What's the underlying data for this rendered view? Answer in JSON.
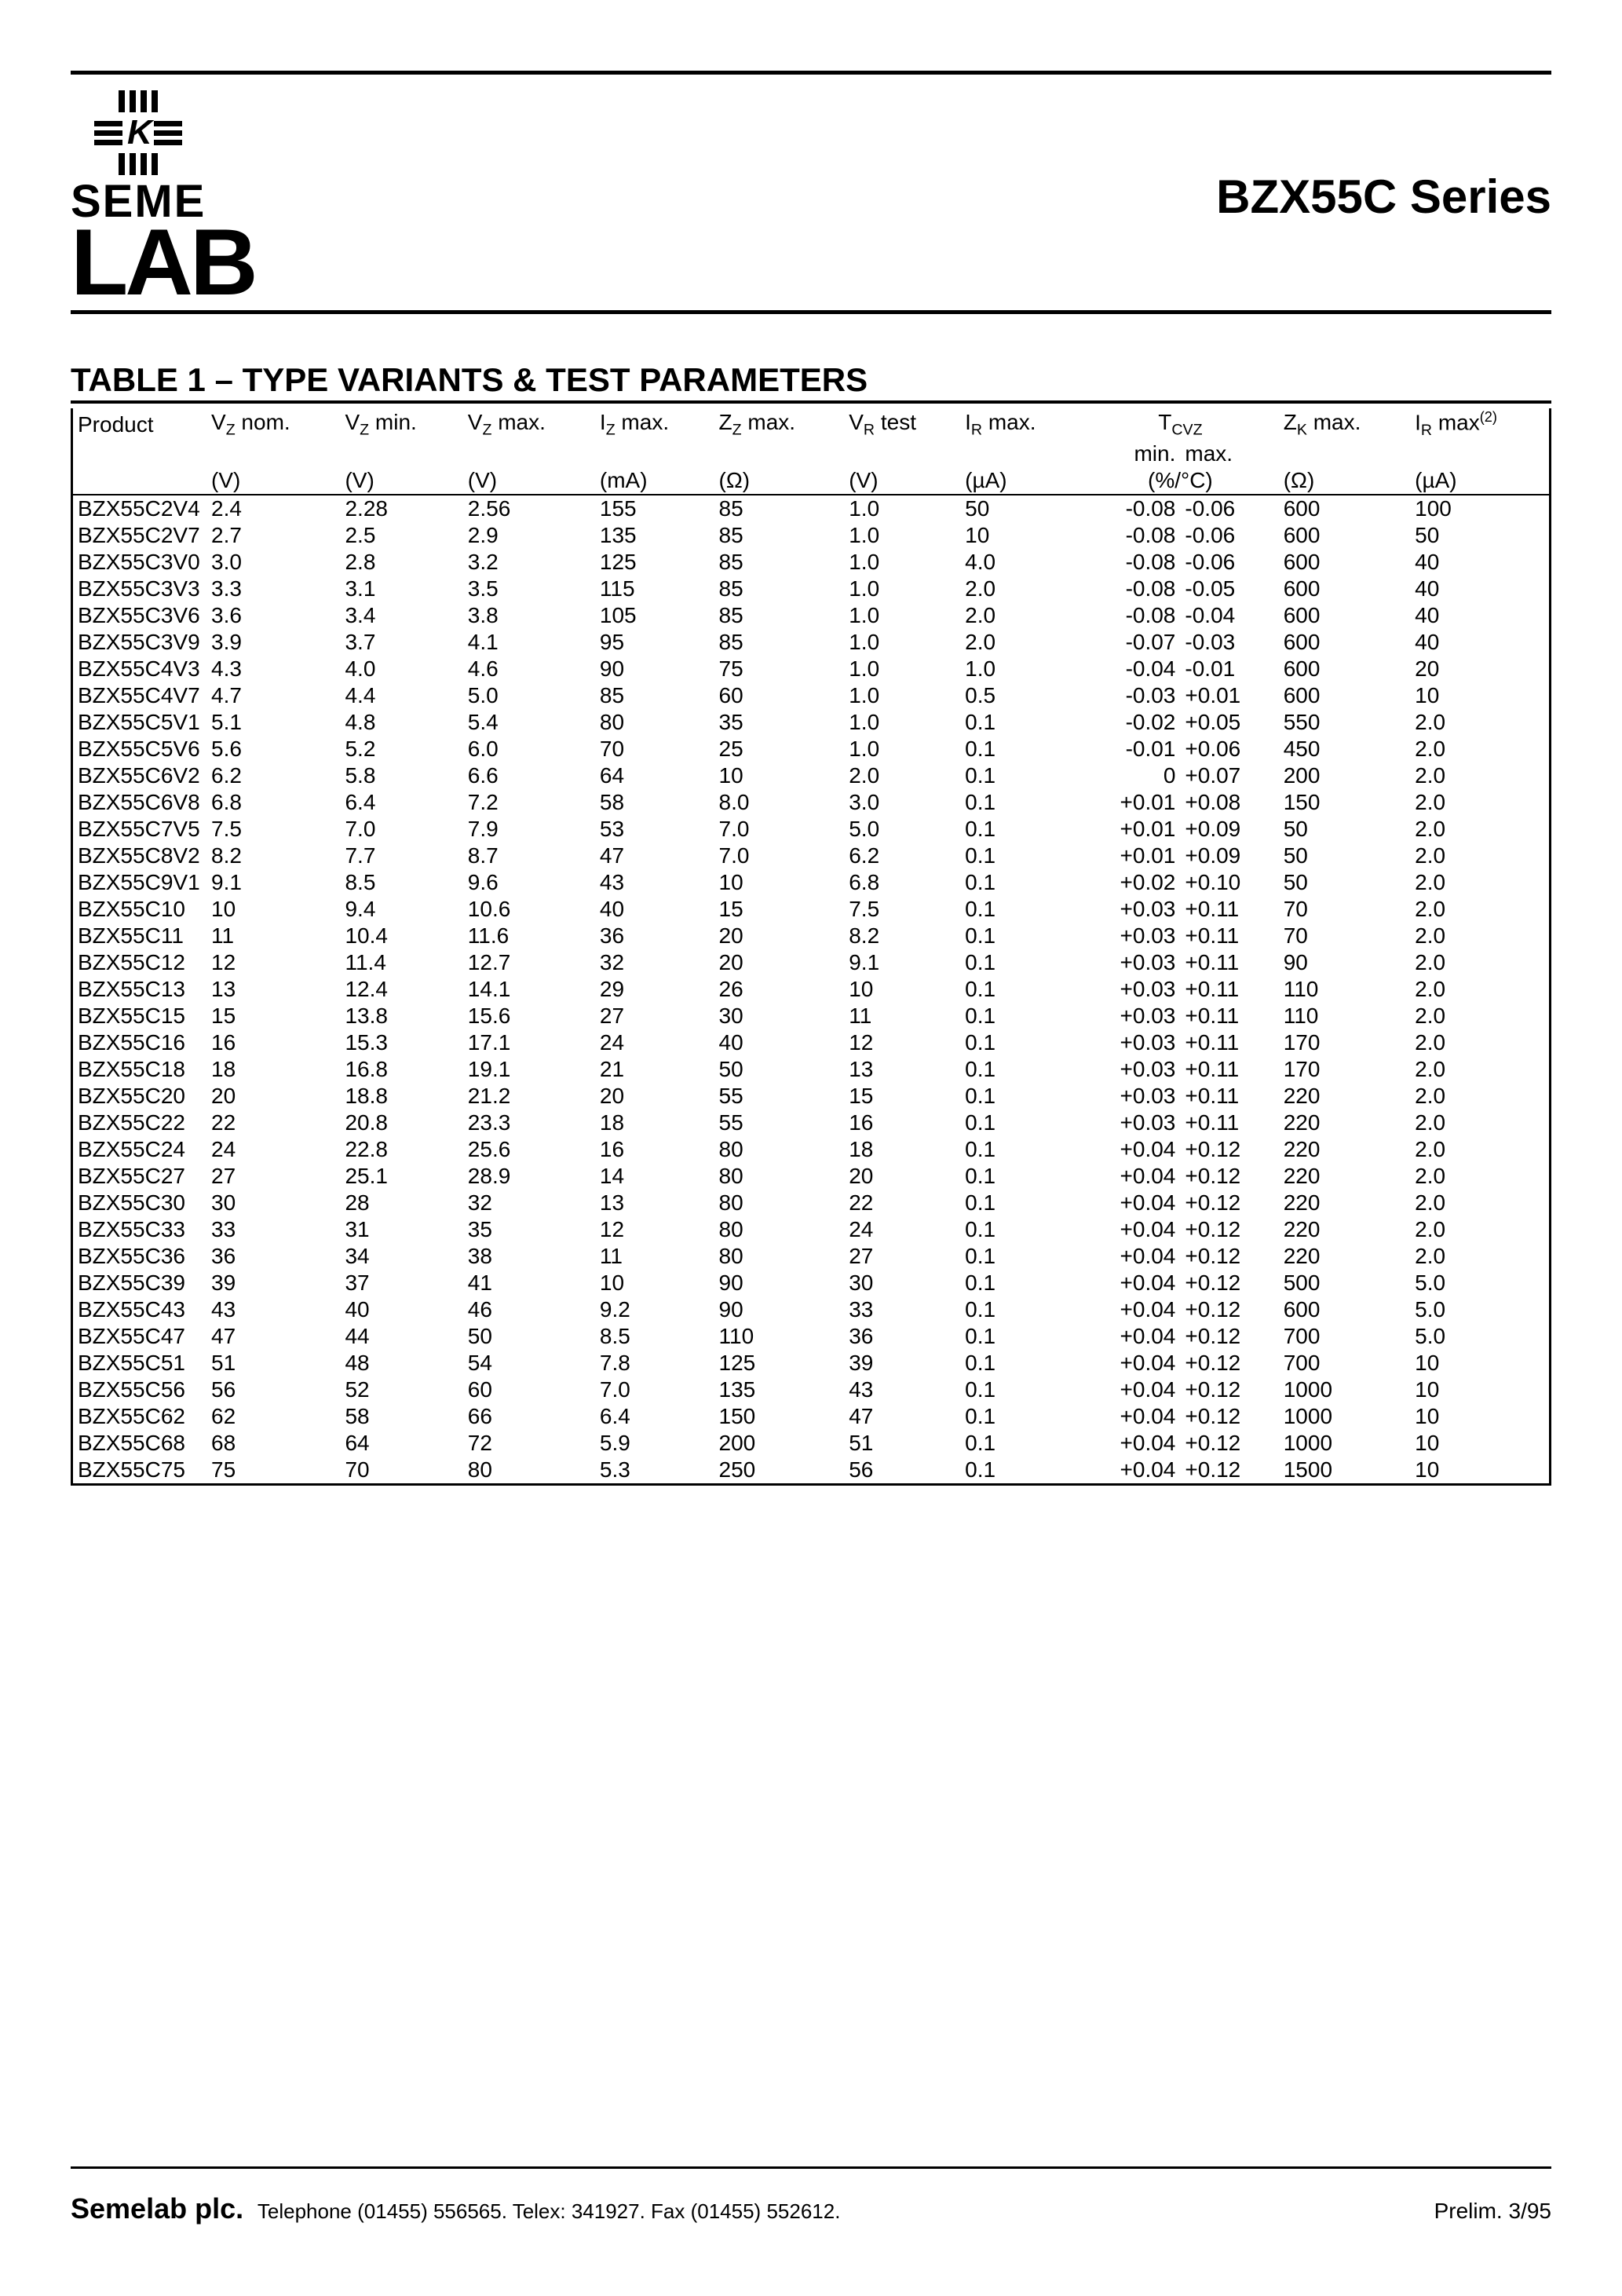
{
  "header": {
    "brand_top": "SEME",
    "brand_bottom": "LAB",
    "series_title": "BZX55C Series"
  },
  "table": {
    "title": "TABLE 1 – TYPE VARIANTS & TEST PARAMETERS",
    "columns": {
      "product": "Product",
      "vz_nom": {
        "label": "V",
        "sub": "Z",
        "suffix": " nom.",
        "unit": "(V)"
      },
      "vz_min": {
        "label": "V",
        "sub": "Z",
        "suffix": " min.",
        "unit": "(V)"
      },
      "vz_max": {
        "label": "V",
        "sub": "Z",
        "suffix": " max.",
        "unit": "(V)"
      },
      "iz_max": {
        "label": "I",
        "sub": "Z",
        "suffix": " max.",
        "unit": "(mA)"
      },
      "zz_max": {
        "label": "Z",
        "sub": "Z",
        "suffix": " max.",
        "unit": "(Ω)"
      },
      "vr_test": {
        "label": "V",
        "sub": "R",
        "suffix": " test",
        "unit": "(V)"
      },
      "ir_max": {
        "label": "I",
        "sub": "R",
        "suffix": " max.",
        "unit": "(µA)"
      },
      "tcvz": {
        "label": "T",
        "sub": "CVZ",
        "min": "min.",
        "max": "max.",
        "unit": "(%/°C)"
      },
      "zk_max": {
        "label": "Z",
        "sub": "K",
        "suffix": " max.",
        "unit": "(Ω)"
      },
      "ir_max2": {
        "label": "I",
        "sub": "R",
        "suffix": " max",
        "sup": "(2)",
        "unit": "(µA)"
      }
    },
    "rows": [
      [
        "BZX55C2V4",
        "2.4",
        "2.28",
        "2.56",
        "155",
        "85",
        "1.0",
        "50",
        "-0.08",
        "-0.06",
        "600",
        "100"
      ],
      [
        "BZX55C2V7",
        "2.7",
        "2.5",
        "2.9",
        "135",
        "85",
        "1.0",
        "10",
        "-0.08",
        "-0.06",
        "600",
        "50"
      ],
      [
        "BZX55C3V0",
        "3.0",
        "2.8",
        "3.2",
        "125",
        "85",
        "1.0",
        "4.0",
        "-0.08",
        "-0.06",
        "600",
        "40"
      ],
      [
        "BZX55C3V3",
        "3.3",
        "3.1",
        "3.5",
        "115",
        "85",
        "1.0",
        "2.0",
        "-0.08",
        "-0.05",
        "600",
        "40"
      ],
      [
        "BZX55C3V6",
        "3.6",
        "3.4",
        "3.8",
        "105",
        "85",
        "1.0",
        "2.0",
        "-0.08",
        "-0.04",
        "600",
        "40"
      ],
      [
        "BZX55C3V9",
        "3.9",
        "3.7",
        "4.1",
        "95",
        "85",
        "1.0",
        "2.0",
        "-0.07",
        "-0.03",
        "600",
        "40"
      ],
      [
        "BZX55C4V3",
        "4.3",
        "4.0",
        "4.6",
        "90",
        "75",
        "1.0",
        "1.0",
        "-0.04",
        "-0.01",
        "600",
        "20"
      ],
      [
        "BZX55C4V7",
        "4.7",
        "4.4",
        "5.0",
        "85",
        "60",
        "1.0",
        "0.5",
        "-0.03",
        "+0.01",
        "600",
        "10"
      ],
      [
        "BZX55C5V1",
        "5.1",
        "4.8",
        "5.4",
        "80",
        "35",
        "1.0",
        "0.1",
        "-0.02",
        "+0.05",
        "550",
        "2.0"
      ],
      [
        "BZX55C5V6",
        "5.6",
        "5.2",
        "6.0",
        "70",
        "25",
        "1.0",
        "0.1",
        "-0.01",
        "+0.06",
        "450",
        "2.0"
      ],
      [
        "BZX55C6V2",
        "6.2",
        "5.8",
        "6.6",
        "64",
        "10",
        "2.0",
        "0.1",
        "0",
        "+0.07",
        "200",
        "2.0"
      ],
      [
        "BZX55C6V8",
        "6.8",
        "6.4",
        "7.2",
        "58",
        "8.0",
        "3.0",
        "0.1",
        "+0.01",
        "+0.08",
        "150",
        "2.0"
      ],
      [
        "BZX55C7V5",
        "7.5",
        "7.0",
        "7.9",
        "53",
        "7.0",
        "5.0",
        "0.1",
        "+0.01",
        "+0.09",
        "50",
        "2.0"
      ],
      [
        "BZX55C8V2",
        "8.2",
        "7.7",
        "8.7",
        "47",
        "7.0",
        "6.2",
        "0.1",
        "+0.01",
        "+0.09",
        "50",
        "2.0"
      ],
      [
        "BZX55C9V1",
        "9.1",
        "8.5",
        "9.6",
        "43",
        "10",
        "6.8",
        "0.1",
        "+0.02",
        "+0.10",
        "50",
        "2.0"
      ],
      [
        "BZX55C10",
        "10",
        "9.4",
        "10.6",
        "40",
        "15",
        "7.5",
        "0.1",
        "+0.03",
        "+0.11",
        "70",
        "2.0"
      ],
      [
        "BZX55C11",
        "11",
        "10.4",
        "11.6",
        "36",
        "20",
        "8.2",
        "0.1",
        "+0.03",
        "+0.11",
        "70",
        "2.0"
      ],
      [
        "BZX55C12",
        "12",
        "11.4",
        "12.7",
        "32",
        "20",
        "9.1",
        "0.1",
        "+0.03",
        "+0.11",
        "90",
        "2.0"
      ],
      [
        "BZX55C13",
        "13",
        "12.4",
        "14.1",
        "29",
        "26",
        "10",
        "0.1",
        "+0.03",
        "+0.11",
        "110",
        "2.0"
      ],
      [
        "BZX55C15",
        "15",
        "13.8",
        "15.6",
        "27",
        "30",
        "11",
        "0.1",
        "+0.03",
        "+0.11",
        "110",
        "2.0"
      ],
      [
        "BZX55C16",
        "16",
        "15.3",
        "17.1",
        "24",
        "40",
        "12",
        "0.1",
        "+0.03",
        "+0.11",
        "170",
        "2.0"
      ],
      [
        "BZX55C18",
        "18",
        "16.8",
        "19.1",
        "21",
        "50",
        "13",
        "0.1",
        "+0.03",
        "+0.11",
        "170",
        "2.0"
      ],
      [
        "BZX55C20",
        "20",
        "18.8",
        "21.2",
        "20",
        "55",
        "15",
        "0.1",
        "+0.03",
        "+0.11",
        "220",
        "2.0"
      ],
      [
        "BZX55C22",
        "22",
        "20.8",
        "23.3",
        "18",
        "55",
        "16",
        "0.1",
        "+0.03",
        "+0.11",
        "220",
        "2.0"
      ],
      [
        "BZX55C24",
        "24",
        "22.8",
        "25.6",
        "16",
        "80",
        "18",
        "0.1",
        "+0.04",
        "+0.12",
        "220",
        "2.0"
      ],
      [
        "BZX55C27",
        "27",
        "25.1",
        "28.9",
        "14",
        "80",
        "20",
        "0.1",
        "+0.04",
        "+0.12",
        "220",
        "2.0"
      ],
      [
        "BZX55C30",
        "30",
        "28",
        "32",
        "13",
        "80",
        "22",
        "0.1",
        "+0.04",
        "+0.12",
        "220",
        "2.0"
      ],
      [
        "BZX55C33",
        "33",
        "31",
        "35",
        "12",
        "80",
        "24",
        "0.1",
        "+0.04",
        "+0.12",
        "220",
        "2.0"
      ],
      [
        "BZX55C36",
        "36",
        "34",
        "38",
        "11",
        "80",
        "27",
        "0.1",
        "+0.04",
        "+0.12",
        "220",
        "2.0"
      ],
      [
        "BZX55C39",
        "39",
        "37",
        "41",
        "10",
        "90",
        "30",
        "0.1",
        "+0.04",
        "+0.12",
        "500",
        "5.0"
      ],
      [
        "BZX55C43",
        "43",
        "40",
        "46",
        "9.2",
        "90",
        "33",
        "0.1",
        "+0.04",
        "+0.12",
        "600",
        "5.0"
      ],
      [
        "BZX55C47",
        "47",
        "44",
        "50",
        "8.5",
        "110",
        "36",
        "0.1",
        "+0.04",
        "+0.12",
        "700",
        "5.0"
      ],
      [
        "BZX55C51",
        "51",
        "48",
        "54",
        "7.8",
        "125",
        "39",
        "0.1",
        "+0.04",
        "+0.12",
        "700",
        "10"
      ],
      [
        "BZX55C56",
        "56",
        "52",
        "60",
        "7.0",
        "135",
        "43",
        "0.1",
        "+0.04",
        "+0.12",
        "1000",
        "10"
      ],
      [
        "BZX55C62",
        "62",
        "58",
        "66",
        "6.4",
        "150",
        "47",
        "0.1",
        "+0.04",
        "+0.12",
        "1000",
        "10"
      ],
      [
        "BZX55C68",
        "68",
        "64",
        "72",
        "5.9",
        "200",
        "51",
        "0.1",
        "+0.04",
        "+0.12",
        "1000",
        "10"
      ],
      [
        "BZX55C75",
        "75",
        "70",
        "80",
        "5.3",
        "250",
        "56",
        "0.1",
        "+0.04",
        "+0.12",
        "1500",
        "10"
      ]
    ]
  },
  "footer": {
    "company": "Semelab plc.",
    "contact": "Telephone (01455) 556565. Telex: 341927. Fax (01455) 552612.",
    "docref": "Prelim. 3/95"
  }
}
